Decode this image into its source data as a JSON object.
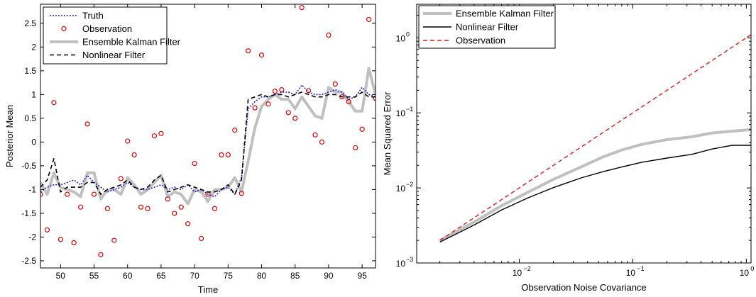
{
  "chart_data": [
    {
      "type": "line",
      "xlabel": "Time",
      "ylabel": "Posterior Mean",
      "xlim": [
        47,
        97
      ],
      "ylim": [
        -2.65,
        2.9
      ],
      "xticks": [
        50,
        55,
        60,
        65,
        70,
        75,
        80,
        85,
        90,
        95
      ],
      "yticks": [
        -2.5,
        -2,
        -1.5,
        -1,
        -0.5,
        0,
        0.5,
        1,
        1.5,
        2,
        2.5
      ],
      "legend_position": "top-left",
      "series": [
        {
          "name": "Truth",
          "kind": "line",
          "color": "#1f1fd6",
          "dash": "dotted",
          "x": [
            47,
            48,
            49,
            50,
            51,
            52,
            53,
            54,
            55,
            56,
            57,
            58,
            59,
            60,
            61,
            62,
            63,
            64,
            65,
            66,
            67,
            68,
            69,
            70,
            71,
            72,
            73,
            74,
            75,
            76,
            77,
            78,
            79,
            80,
            81,
            82,
            83,
            84,
            85,
            86,
            87,
            88,
            89,
            90,
            91,
            92,
            93,
            94,
            95,
            96,
            97
          ],
          "y": [
            -1.05,
            -0.95,
            -0.9,
            -0.9,
            -0.85,
            -0.8,
            -0.9,
            -0.7,
            -0.85,
            -0.95,
            -1.05,
            -1.0,
            -0.95,
            -0.85,
            -0.95,
            -1.0,
            -1.0,
            -0.95,
            -0.9,
            -1.0,
            -0.95,
            -1.0,
            -0.9,
            -1.05,
            -1.0,
            -1.1,
            -1.15,
            -1.0,
            -0.95,
            -1.1,
            -0.75,
            0.7,
            0.85,
            0.95,
            0.95,
            1.0,
            1.05,
            1.05,
            1.0,
            1.2,
            1.05,
            1.0,
            1.0,
            1.05,
            1.1,
            1.05,
            0.9,
            0.95,
            1.15,
            1.0,
            0.95
          ]
        },
        {
          "name": "Observation",
          "kind": "markers",
          "color": "#e00000",
          "x": [
            47,
            48,
            49,
            50,
            51,
            52,
            53,
            54,
            55,
            56,
            57,
            58,
            59,
            60,
            61,
            62,
            63,
            64,
            65,
            66,
            67,
            68,
            69,
            70,
            71,
            72,
            73,
            74,
            75,
            76,
            77,
            78,
            79,
            80,
            81,
            82,
            83,
            84,
            85,
            86,
            87,
            88,
            89,
            90,
            91,
            92,
            93,
            94,
            95,
            96,
            97
          ],
          "y": [
            -1.1,
            -1.85,
            0.83,
            -2.05,
            -1.1,
            -2.12,
            -1.37,
            0.38,
            -1.1,
            -2.37,
            -1.4,
            -2.07,
            -0.77,
            0.02,
            -0.27,
            -1.37,
            -1.4,
            0.13,
            0.18,
            -1.2,
            -1.5,
            -1.37,
            -1.72,
            -0.45,
            -2.03,
            -1.1,
            -1.4,
            -0.27,
            -0.27,
            0.25,
            -1.08,
            1.92,
            0.72,
            1.83,
            0.8,
            1.07,
            1.1,
            0.62,
            0.5,
            2.83,
            1.08,
            0.15,
            0.0,
            2.25,
            1.22,
            0.95,
            0.85,
            -0.12,
            0.27,
            2.58,
            0.92
          ]
        },
        {
          "name": "Ensemble Kalman Filter",
          "kind": "line",
          "color": "#c0c0c0",
          "dash": "solid",
          "x": [
            47,
            48,
            49,
            50,
            51,
            52,
            53,
            54,
            55,
            56,
            57,
            58,
            59,
            60,
            61,
            62,
            63,
            64,
            65,
            66,
            67,
            68,
            69,
            70,
            71,
            72,
            73,
            74,
            75,
            76,
            77,
            78,
            79,
            80,
            81,
            82,
            83,
            84,
            85,
            86,
            87,
            88,
            89,
            90,
            91,
            92,
            93,
            94,
            95,
            96,
            97
          ],
          "y": [
            -0.85,
            -1.1,
            -0.65,
            -0.95,
            -1.0,
            -1.05,
            -1.15,
            -0.65,
            -0.65,
            -1.2,
            -1.0,
            -1.0,
            -1.1,
            -0.75,
            -0.9,
            -1.1,
            -1.0,
            -0.85,
            -0.7,
            -1.15,
            -1.05,
            -1.1,
            -1.3,
            -1.0,
            -1.05,
            -1.25,
            -1.0,
            -1.0,
            -0.95,
            -0.75,
            -1.05,
            -0.4,
            0.3,
            0.75,
            0.9,
            1.0,
            0.9,
            0.9,
            0.7,
            0.95,
            0.75,
            0.55,
            0.5,
            1.15,
            1.05,
            1.05,
            0.85,
            0.65,
            0.65,
            1.55,
            1.0
          ]
        },
        {
          "name": "Nonlinear Filter",
          "kind": "line",
          "color": "#000000",
          "dash": "dashed",
          "x": [
            47,
            48,
            49,
            50,
            51,
            52,
            53,
            54,
            55,
            56,
            57,
            58,
            59,
            60,
            61,
            62,
            63,
            64,
            65,
            66,
            67,
            68,
            69,
            70,
            71,
            72,
            73,
            74,
            75,
            76,
            77,
            78,
            79,
            80,
            81,
            82,
            83,
            84,
            85,
            86,
            87,
            88,
            89,
            90,
            91,
            92,
            93,
            94,
            95,
            96,
            97
          ],
          "y": [
            -0.95,
            -0.8,
            -0.35,
            -1.05,
            -0.95,
            -0.95,
            -0.95,
            -0.85,
            -0.85,
            -1.1,
            -1.0,
            -0.95,
            -0.9,
            -0.8,
            -0.95,
            -1.0,
            -0.95,
            -0.8,
            -0.7,
            -1.05,
            -1.0,
            -0.95,
            -0.9,
            -0.95,
            -1.0,
            -1.05,
            -1.05,
            -1.0,
            -0.9,
            -1.1,
            -0.8,
            0.9,
            0.95,
            1.0,
            0.95,
            1.0,
            1.0,
            0.95,
            1.0,
            1.05,
            1.0,
            0.95,
            0.95,
            1.0,
            1.0,
            0.95,
            0.95,
            0.95,
            1.05,
            0.95,
            0.95
          ]
        }
      ]
    },
    {
      "type": "line",
      "xlabel": "Observation Noise Covariance",
      "ylabel": "Mean Squared Error",
      "xscale": "log",
      "yscale": "log",
      "xlim": [
        0.00125,
        1.1
      ],
      "ylim": [
        0.001,
        2.8
      ],
      "xticks": [
        0.01,
        0.1,
        1
      ],
      "xticklabels": [
        "10",
        "10",
        "10"
      ],
      "xtickexp": [
        "−2",
        "−1",
        "0"
      ],
      "yticks": [
        0.001,
        0.01,
        0.1,
        1
      ],
      "yticklabels": [
        "10",
        "10",
        "10",
        "10"
      ],
      "ytickexp": [
        "−3",
        "−2",
        "−1",
        "0"
      ],
      "legend_position": "top-left",
      "series": [
        {
          "name": "Ensemble Kalman Filter",
          "color": "#c0c0c0",
          "dash": "solid",
          "x": [
            0.002,
            0.004,
            0.007,
            0.012,
            0.02,
            0.035,
            0.055,
            0.08,
            0.12,
            0.2,
            0.33,
            0.5,
            0.75,
            1.1
          ],
          "y": [
            0.002,
            0.0035,
            0.0058,
            0.0088,
            0.013,
            0.019,
            0.026,
            0.032,
            0.038,
            0.044,
            0.048,
            0.054,
            0.057,
            0.06
          ]
        },
        {
          "name": "Nonlinear Filter",
          "color": "#000000",
          "dash": "solid",
          "x": [
            0.002,
            0.004,
            0.007,
            0.012,
            0.02,
            0.035,
            0.055,
            0.08,
            0.12,
            0.2,
            0.33,
            0.5,
            0.75,
            1.1
          ],
          "y": [
            0.0019,
            0.0032,
            0.0051,
            0.0074,
            0.0101,
            0.0136,
            0.0165,
            0.019,
            0.022,
            0.025,
            0.028,
            0.033,
            0.037,
            0.037
          ]
        },
        {
          "name": "Observation",
          "color": "#e41a1c",
          "dash": "dashed",
          "x": [
            0.002,
            1.1
          ],
          "y": [
            0.002,
            1.1
          ]
        }
      ]
    }
  ]
}
